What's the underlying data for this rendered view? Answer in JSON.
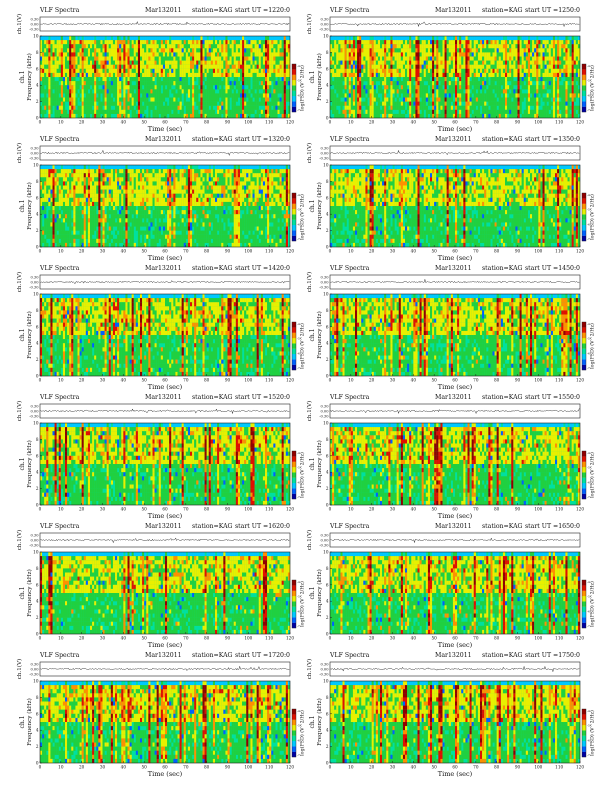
{
  "chart_data": [
    {
      "type": "heatmap",
      "title": "VLF Spectra",
      "date": "Mar132011",
      "station": "station=KAG",
      "start": "start UT =1220:0",
      "wave_ylabel": "ch.1(V)",
      "wave_ticks": [
        "0.30",
        "0.00",
        "-0.30"
      ],
      "ylabel_ch": "ch.1",
      "ylabel": "Frequency (kHz)",
      "xlabel": "Time (sec)",
      "xlim": [
        0,
        120
      ],
      "ylim": [
        0,
        10
      ],
      "x_ticks": [
        0,
        10,
        20,
        30,
        40,
        50,
        60,
        70,
        80,
        90,
        100,
        110,
        120
      ],
      "y_ticks": [
        0,
        2,
        4,
        6,
        8,
        10
      ],
      "colorbar_label": "log(PSD) (V^2/Hz)",
      "colorbar_ticks": [
        "-4",
        "-5",
        "-6",
        "-7"
      ],
      "colorscale": [
        "#0000a0",
        "#0060ff",
        "#00c8ff",
        "#00e0a0",
        "#20d040",
        "#e8f000",
        "#ff9000",
        "#e01000",
        "#900000"
      ]
    },
    {
      "type": "heatmap",
      "title": "VLF Spectra",
      "date": "Mar132011",
      "station": "station=KAG",
      "start": "start UT =1250:0",
      "wave_ylabel": "ch.1(V)",
      "wave_ticks": [
        "0.30",
        "0.00",
        "-0.30"
      ],
      "ylabel_ch": "ch.1",
      "ylabel": "Frequency (kHz)",
      "xlabel": "Time (sec)",
      "xlim": [
        0,
        120
      ],
      "ylim": [
        0,
        10
      ],
      "x_ticks": [
        0,
        10,
        20,
        30,
        40,
        50,
        60,
        70,
        80,
        90,
        100,
        110,
        120
      ],
      "y_ticks": [
        0,
        2,
        4,
        6,
        8,
        10
      ],
      "colorbar_label": "log(PSD) (V^2/Hz)",
      "colorbar_ticks": [
        "-4",
        "-5",
        "-6",
        "-7"
      ],
      "colorscale": [
        "#0000a0",
        "#0060ff",
        "#00c8ff",
        "#00e0a0",
        "#20d040",
        "#e8f000",
        "#ff9000",
        "#e01000",
        "#900000"
      ]
    },
    {
      "type": "heatmap",
      "title": "VLF Spectra",
      "date": "Mar132011",
      "station": "station=KAG",
      "start": "start UT =1320:0",
      "wave_ylabel": "ch.1(V)",
      "wave_ticks": [
        "0.30",
        "0.00",
        "-0.30"
      ],
      "ylabel_ch": "ch.1",
      "ylabel": "Frequency (kHz)",
      "xlabel": "Time (sec)",
      "xlim": [
        0,
        120
      ],
      "ylim": [
        0,
        10
      ],
      "x_ticks": [
        0,
        10,
        20,
        30,
        40,
        50,
        60,
        70,
        80,
        90,
        100,
        110,
        120
      ],
      "y_ticks": [
        0,
        2,
        4,
        6,
        8,
        10
      ],
      "colorbar_label": "log(PSD) (V^2/Hz)",
      "colorbar_ticks": [
        "-4",
        "-5",
        "-6",
        "-7"
      ],
      "colorscale": [
        "#0000a0",
        "#0060ff",
        "#00c8ff",
        "#00e0a0",
        "#20d040",
        "#e8f000",
        "#ff9000",
        "#e01000",
        "#900000"
      ]
    },
    {
      "type": "heatmap",
      "title": "VLF Spectra",
      "date": "Mar132011",
      "station": "station=KAG",
      "start": "start UT =1350:0",
      "wave_ylabel": "ch.1(V)",
      "wave_ticks": [
        "0.30",
        "0.00",
        "-0.30"
      ],
      "ylabel_ch": "ch.1",
      "ylabel": "Frequency (kHz)",
      "xlabel": "Time (sec)",
      "xlim": [
        0,
        120
      ],
      "ylim": [
        0,
        10
      ],
      "x_ticks": [
        0,
        10,
        20,
        30,
        40,
        50,
        60,
        70,
        80,
        90,
        100,
        110,
        120
      ],
      "y_ticks": [
        0,
        2,
        4,
        6,
        8,
        10
      ],
      "colorbar_label": "log(PSD) (V^2/Hz)",
      "colorbar_ticks": [
        "-4",
        "-5",
        "-6",
        "-7"
      ],
      "colorscale": [
        "#0000a0",
        "#0060ff",
        "#00c8ff",
        "#00e0a0",
        "#20d040",
        "#e8f000",
        "#ff9000",
        "#e01000",
        "#900000"
      ]
    },
    {
      "type": "heatmap",
      "title": "VLF Spectra",
      "date": "Mar132011",
      "station": "station=KAG",
      "start": "start UT =1420:0",
      "wave_ylabel": "ch.1(V)",
      "wave_ticks": [
        "0.30",
        "0.00",
        "-0.30"
      ],
      "ylabel_ch": "ch.1",
      "ylabel": "Frequency (kHz)",
      "xlabel": "Time (sec)",
      "xlim": [
        0,
        120
      ],
      "ylim": [
        0,
        10
      ],
      "x_ticks": [
        0,
        10,
        20,
        30,
        40,
        50,
        60,
        70,
        80,
        90,
        100,
        110,
        120
      ],
      "y_ticks": [
        0,
        2,
        4,
        6,
        8,
        10
      ],
      "colorbar_label": "log(PSD) (V^2/Hz)",
      "colorbar_ticks": [
        "-4",
        "-5",
        "-6",
        "-7"
      ],
      "colorscale": [
        "#0000a0",
        "#0060ff",
        "#00c8ff",
        "#00e0a0",
        "#20d040",
        "#e8f000",
        "#ff9000",
        "#e01000",
        "#900000"
      ]
    },
    {
      "type": "heatmap",
      "title": "VLF Spectra",
      "date": "Mar132011",
      "station": "station=KAG",
      "start": "start UT =1450:0",
      "wave_ylabel": "ch.1(V)",
      "wave_ticks": [
        "0.30",
        "0.00",
        "-0.30"
      ],
      "ylabel_ch": "ch.1",
      "ylabel": "Frequency (kHz)",
      "xlabel": "Time (sec)",
      "xlim": [
        0,
        120
      ],
      "ylim": [
        0,
        10
      ],
      "x_ticks": [
        0,
        10,
        20,
        30,
        40,
        50,
        60,
        70,
        80,
        90,
        100,
        110,
        120
      ],
      "y_ticks": [
        0,
        2,
        4,
        6,
        8,
        10
      ],
      "colorbar_label": "log(PSD) (V^2/Hz)",
      "colorbar_ticks": [
        "-4",
        "-5",
        "-6",
        "-7"
      ],
      "colorscale": [
        "#0000a0",
        "#0060ff",
        "#00c8ff",
        "#00e0a0",
        "#20d040",
        "#e8f000",
        "#ff9000",
        "#e01000",
        "#900000"
      ]
    },
    {
      "type": "heatmap",
      "title": "VLF Spectra",
      "date": "Mar132011",
      "station": "station=KAG",
      "start": "start UT =1520:0",
      "wave_ylabel": "ch.1(V)",
      "wave_ticks": [
        "0.30",
        "0.00",
        "-0.30"
      ],
      "ylabel_ch": "ch.1",
      "ylabel": "Frequency (kHz)",
      "xlabel": "Time (sec)",
      "xlim": [
        0,
        120
      ],
      "ylim": [
        0,
        10
      ],
      "x_ticks": [
        0,
        10,
        20,
        30,
        40,
        50,
        60,
        70,
        80,
        90,
        100,
        110,
        120
      ],
      "y_ticks": [
        0,
        2,
        4,
        6,
        8,
        10
      ],
      "colorbar_label": "log(PSD) (V^2/Hz)",
      "colorbar_ticks": [
        "-4",
        "-5",
        "-6",
        "-7"
      ],
      "colorscale": [
        "#0000a0",
        "#0060ff",
        "#00c8ff",
        "#00e0a0",
        "#20d040",
        "#e8f000",
        "#ff9000",
        "#e01000",
        "#900000"
      ]
    },
    {
      "type": "heatmap",
      "title": "VLF Spectra",
      "date": "Mar132011",
      "station": "station=KAG",
      "start": "start UT =1550:0",
      "wave_ylabel": "ch.1(V)",
      "wave_ticks": [
        "0.30",
        "0.00",
        "-0.30"
      ],
      "ylabel_ch": "ch.1",
      "ylabel": "Frequency (kHz)",
      "xlabel": "Time (sec)",
      "xlim": [
        0,
        120
      ],
      "ylim": [
        0,
        10
      ],
      "x_ticks": [
        0,
        10,
        20,
        30,
        40,
        50,
        60,
        70,
        80,
        90,
        100,
        110,
        120
      ],
      "y_ticks": [
        0,
        2,
        4,
        6,
        8,
        10
      ],
      "colorbar_label": "log(PSD) (V^2/Hz)",
      "colorbar_ticks": [
        "-4",
        "-5",
        "-6",
        "-7"
      ],
      "colorscale": [
        "#0000a0",
        "#0060ff",
        "#00c8ff",
        "#00e0a0",
        "#20d040",
        "#e8f000",
        "#ff9000",
        "#e01000",
        "#900000"
      ]
    },
    {
      "type": "heatmap",
      "title": "VLF Spectra",
      "date": "Mar132011",
      "station": "station=KAG",
      "start": "start UT =1620:0",
      "wave_ylabel": "ch.1(V)",
      "wave_ticks": [
        "0.30",
        "0.00",
        "-0.30"
      ],
      "ylabel_ch": "ch.1",
      "ylabel": "Frequency (kHz)",
      "xlabel": "Time (sec)",
      "xlim": [
        0,
        120
      ],
      "ylim": [
        0,
        10
      ],
      "x_ticks": [
        0,
        10,
        20,
        30,
        40,
        50,
        60,
        70,
        80,
        90,
        100,
        110,
        120
      ],
      "y_ticks": [
        0,
        2,
        4,
        6,
        8,
        10
      ],
      "colorbar_label": "log(PSD) (V^2/Hz)",
      "colorbar_ticks": [
        "-4",
        "-5",
        "-6",
        "-7"
      ],
      "colorscale": [
        "#0000a0",
        "#0060ff",
        "#00c8ff",
        "#00e0a0",
        "#20d040",
        "#e8f000",
        "#ff9000",
        "#e01000",
        "#900000"
      ]
    },
    {
      "type": "heatmap",
      "title": "VLF Spectra",
      "date": "Mar132011",
      "station": "station=KAG",
      "start": "start UT =1650:0",
      "wave_ylabel": "ch.1(V)",
      "wave_ticks": [
        "0.30",
        "0.00",
        "-0.30"
      ],
      "ylabel_ch": "ch.1",
      "ylabel": "Frequency (kHz)",
      "xlabel": "Time (sec)",
      "xlim": [
        0,
        120
      ],
      "ylim": [
        0,
        10
      ],
      "x_ticks": [
        0,
        10,
        20,
        30,
        40,
        50,
        60,
        70,
        80,
        90,
        100,
        110,
        120
      ],
      "y_ticks": [
        0,
        2,
        4,
        6,
        8,
        10
      ],
      "colorbar_label": "log(PSD) (V^2/Hz)",
      "colorbar_ticks": [
        "-4",
        "-5",
        "-6",
        "-7"
      ],
      "colorscale": [
        "#0000a0",
        "#0060ff",
        "#00c8ff",
        "#00e0a0",
        "#20d040",
        "#e8f000",
        "#ff9000",
        "#e01000",
        "#900000"
      ]
    },
    {
      "type": "heatmap",
      "title": "VLF Spectra",
      "date": "Mar132011",
      "station": "station=KAG",
      "start": "start UT =1720:0",
      "wave_ylabel": "ch.1(V)",
      "wave_ticks": [
        "0.30",
        "0.00",
        "-0.30"
      ],
      "ylabel_ch": "ch.1",
      "ylabel": "Frequency (kHz)",
      "xlabel": "Time (sec)",
      "xlim": [
        0,
        120
      ],
      "ylim": [
        0,
        10
      ],
      "x_ticks": [
        0,
        10,
        20,
        30,
        40,
        50,
        60,
        70,
        80,
        90,
        100,
        110,
        120
      ],
      "y_ticks": [
        0,
        2,
        4,
        6,
        8,
        10
      ],
      "colorbar_label": "log(PSD) (V^2/Hz)",
      "colorbar_ticks": [
        "-4",
        "-5",
        "-6",
        "-7"
      ],
      "colorscale": [
        "#0000a0",
        "#0060ff",
        "#00c8ff",
        "#00e0a0",
        "#20d040",
        "#e8f000",
        "#ff9000",
        "#e01000",
        "#900000"
      ]
    },
    {
      "type": "heatmap",
      "title": "VLF Spectra",
      "date": "Mar132011",
      "station": "station=KAG",
      "start": "start UT =1750:0",
      "wave_ylabel": "ch.1(V)",
      "wave_ticks": [
        "0.30",
        "0.00",
        "-0.30"
      ],
      "ylabel_ch": "ch.1",
      "ylabel": "Frequency (kHz)",
      "xlabel": "Time (sec)",
      "xlim": [
        0,
        120
      ],
      "ylim": [
        0,
        10
      ],
      "x_ticks": [
        0,
        10,
        20,
        30,
        40,
        50,
        60,
        70,
        80,
        90,
        100,
        110,
        120
      ],
      "y_ticks": [
        0,
        2,
        4,
        6,
        8,
        10
      ],
      "colorbar_label": "log(PSD) (V^2/Hz)",
      "colorbar_ticks": [
        "-4",
        "-5",
        "-6",
        "-7"
      ],
      "colorscale": [
        "#0000a0",
        "#0060ff",
        "#00c8ff",
        "#00e0a0",
        "#20d040",
        "#e8f000",
        "#ff9000",
        "#e01000",
        "#900000"
      ]
    }
  ]
}
